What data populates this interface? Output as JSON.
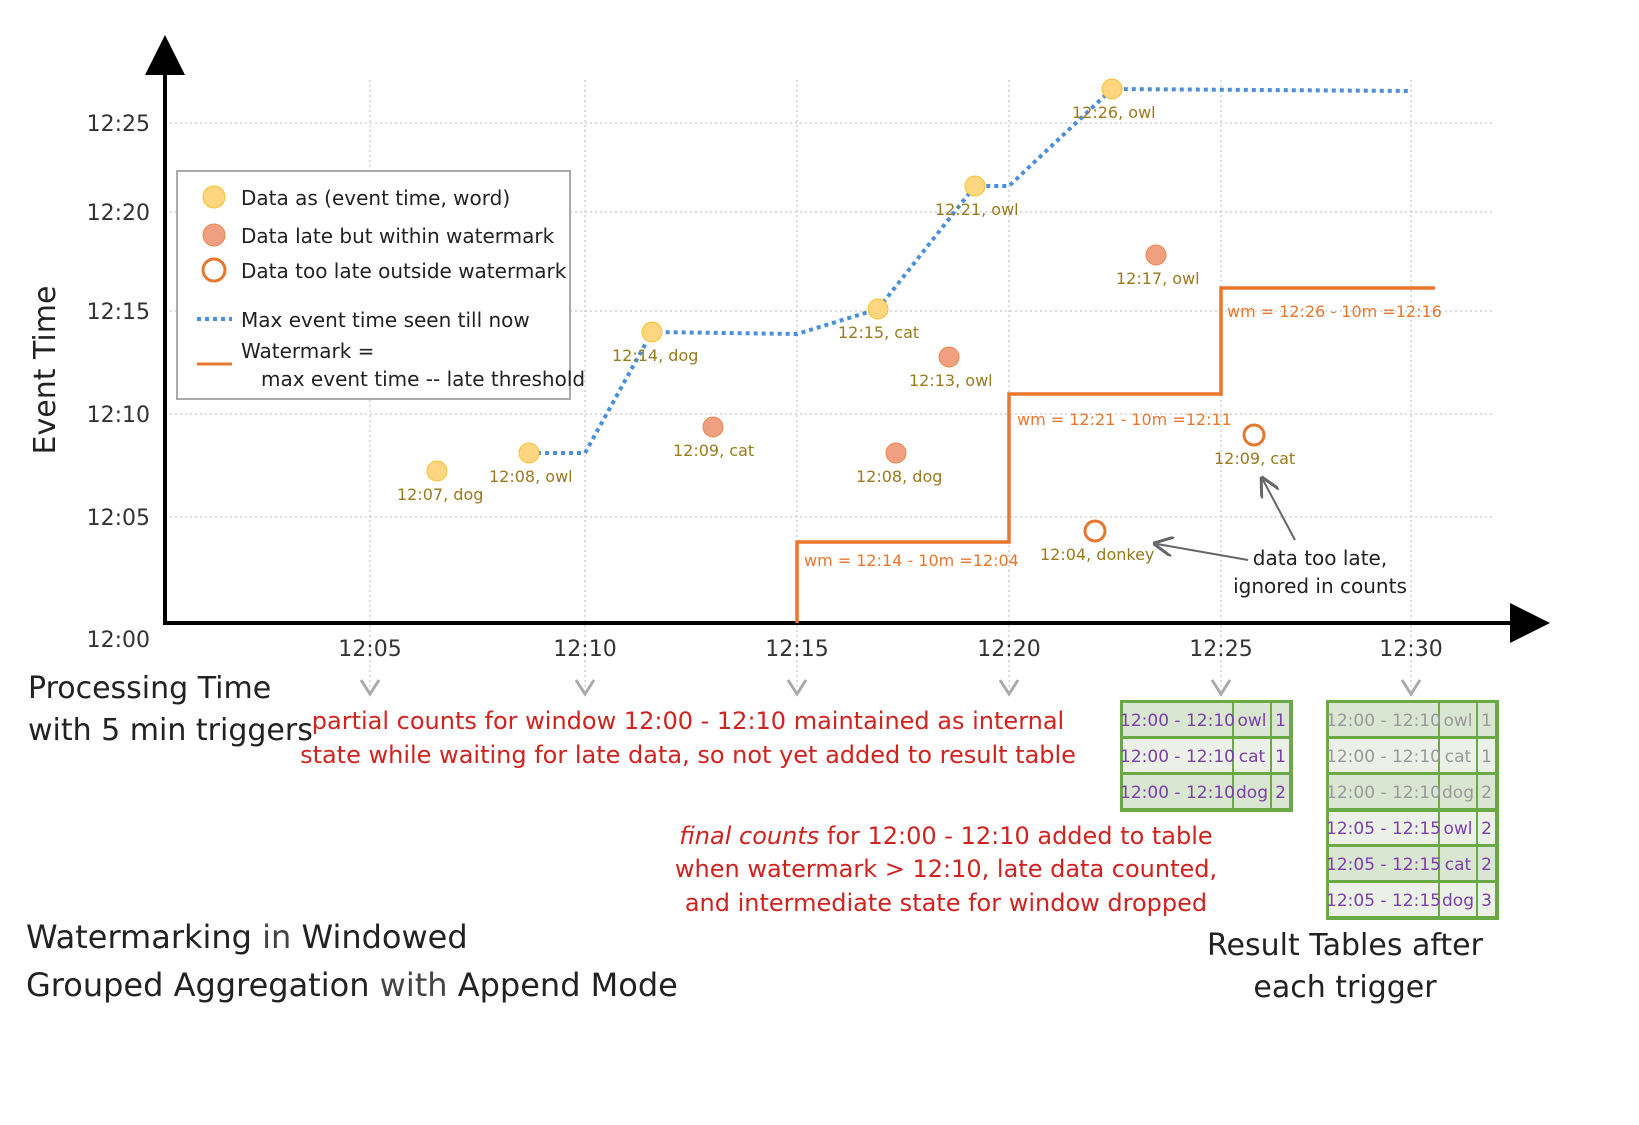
{
  "axes": {
    "y_label": "Event Time",
    "x_label_line1": "Processing Time",
    "x_label_line2": "with 5 min triggers",
    "y_ticks": [
      "12:00",
      "12:05",
      "12:10",
      "12:15",
      "12:20",
      "12:25"
    ],
    "x_ticks": [
      "12:05",
      "12:10",
      "12:15",
      "12:20",
      "12:25",
      "12:30"
    ]
  },
  "legend": {
    "data": "Data as (event time, word)",
    "late": "Data late but within watermark",
    "too_late": "Data too late outside watermark",
    "max": "Max event time seen till now",
    "wm1": "Watermark =",
    "wm2": "max event time -- late threshold"
  },
  "colors": {
    "on_time": "#ffd680",
    "late": "#f0a080",
    "too_late": "#e8772e",
    "max_line": "#4a90d9",
    "watermark": "#e8772e",
    "table_border": "#6aaa46",
    "table_text": "#7b3fa8"
  },
  "points": [
    {
      "label": "12:07, dog",
      "type": "on_time"
    },
    {
      "label": "12:08, owl",
      "type": "on_time"
    },
    {
      "label": "12:14, dog",
      "type": "on_time"
    },
    {
      "label": "12:09, cat",
      "type": "late"
    },
    {
      "label": "12:15, cat",
      "type": "on_time"
    },
    {
      "label": "12:08, dog",
      "type": "late"
    },
    {
      "label": "12:13, owl",
      "type": "late"
    },
    {
      "label": "12:21, owl",
      "type": "on_time"
    },
    {
      "label": "12:04, donkey",
      "type": "too_late"
    },
    {
      "label": "12:26, owl",
      "type": "on_time"
    },
    {
      "label": "12:17, owl",
      "type": "late"
    },
    {
      "label": "12:09, cat",
      "type": "too_late"
    }
  ],
  "watermark_labels": [
    "wm = 12:14 - 10m =12:04",
    "wm = 12:21 - 10m =12:11",
    "wm = 12:26 - 10m =12:16"
  ],
  "annotations": {
    "too_late1": "data too late,",
    "too_late2": "ignored in counts",
    "partial1": "partial counts for window 12:00 - 12:10 maintained as internal",
    "partial2": "state while waiting for late data, so not yet added  to result table",
    "final_em": "final counts",
    "final1": " for 12:00 - 12:10 added to table",
    "final2": "when watermark > 12:10, late data counted,",
    "final3": "and intermediate state for window dropped"
  },
  "title": {
    "a": "Watermarking",
    "b": " in ",
    "c": "Windowed",
    "d": "Grouped Aggregation",
    "e": " with ",
    "f": "Append Mode"
  },
  "result_caption": {
    "l1": "Result Tables after",
    "l2": "each trigger"
  },
  "table1": [
    [
      "12:00 - 12:10",
      "owl",
      "1"
    ],
    [
      "12:00 - 12:10",
      "cat",
      "1"
    ],
    [
      "12:00 - 12:10",
      "dog",
      "2"
    ]
  ],
  "table2": [
    [
      "12:00 - 12:10",
      "owl",
      "1"
    ],
    [
      "12:00 - 12:10",
      "cat",
      "1"
    ],
    [
      "12:00 - 12:10",
      "dog",
      "2"
    ],
    [
      "12:05 - 12:15",
      "owl",
      "2"
    ],
    [
      "12:05 - 12:15",
      "cat",
      "2"
    ],
    [
      "12:05 - 12:15",
      "dog",
      "3"
    ]
  ]
}
